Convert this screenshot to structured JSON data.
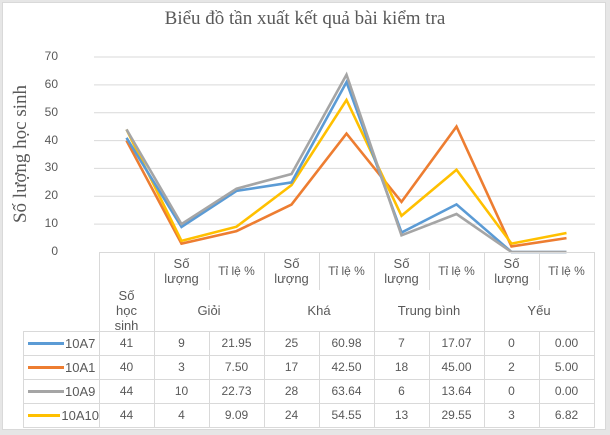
{
  "chart": {
    "title": "Biểu đồ tần xuất kết quả bài kiểm tra",
    "ylabel": "Số lượng học sinh",
    "yticks": [
      "70",
      "60",
      "50",
      "40",
      "30",
      "20",
      "10",
      "0"
    ]
  },
  "table": {
    "col_first": "Số học sinh",
    "sub_headers": [
      "Số lượng",
      "Tỉ lệ %",
      "Số lượng",
      "Tỉ lệ %",
      "Số lượng",
      "Tỉ lệ %",
      "Số lượng",
      "Tỉ lệ %"
    ],
    "group_headers": [
      "Giỏi",
      "Khá",
      "Trung bình",
      "Yếu"
    ],
    "rows": [
      {
        "label": "10A7",
        "color": "#5b9bd5",
        "cells": [
          "41",
          "9",
          "21.95",
          "25",
          "60.98",
          "7",
          "17.07",
          "0",
          "0.00"
        ]
      },
      {
        "label": "10A1",
        "color": "#ed7d31",
        "cells": [
          "40",
          "3",
          "7.50",
          "17",
          "42.50",
          "18",
          "45.00",
          "2",
          "5.00"
        ]
      },
      {
        "label": "10A9",
        "color": "#a5a5a5",
        "cells": [
          "44",
          "10",
          "22.73",
          "28",
          "63.64",
          "6",
          "13.64",
          "0",
          "0.00"
        ]
      },
      {
        "label": "10A10",
        "color": "#ffc000",
        "cells": [
          "44",
          "4",
          "9.09",
          "24",
          "54.55",
          "13",
          "29.55",
          "3",
          "6.82"
        ]
      }
    ]
  },
  "chart_data": {
    "type": "line",
    "title": "Biểu đồ tần xuất kết quả bài kiểm tra",
    "xlabel": "",
    "ylabel": "Số lượng học sinh",
    "ylim": [
      0,
      70
    ],
    "yticks": [
      0,
      10,
      20,
      30,
      40,
      50,
      60,
      70
    ],
    "grid": true,
    "legend_position": "data-table",
    "categories": [
      "Số học sinh",
      "Giỏi - Số lượng",
      "Giỏi - Tỉ lệ %",
      "Khá - Số lượng",
      "Khá - Tỉ lệ %",
      "Trung bình - Số lượng",
      "Trung bình - Tỉ lệ %",
      "Yếu - Số lượng",
      "Yếu - Tỉ lệ %"
    ],
    "series": [
      {
        "name": "10A7",
        "color": "#5b9bd5",
        "values": [
          41,
          9,
          21.95,
          25,
          60.98,
          7,
          17.07,
          0,
          0.0
        ]
      },
      {
        "name": "10A1",
        "color": "#ed7d31",
        "values": [
          40,
          3,
          7.5,
          17,
          42.5,
          18,
          45.0,
          2,
          5.0
        ]
      },
      {
        "name": "10A9",
        "color": "#a5a5a5",
        "values": [
          44,
          10,
          22.73,
          28,
          63.64,
          6,
          13.64,
          0,
          0.0
        ]
      },
      {
        "name": "10A10",
        "color": "#ffc000",
        "values": [
          44,
          4,
          9.09,
          24,
          54.55,
          13,
          29.55,
          3,
          6.82
        ]
      }
    ]
  }
}
